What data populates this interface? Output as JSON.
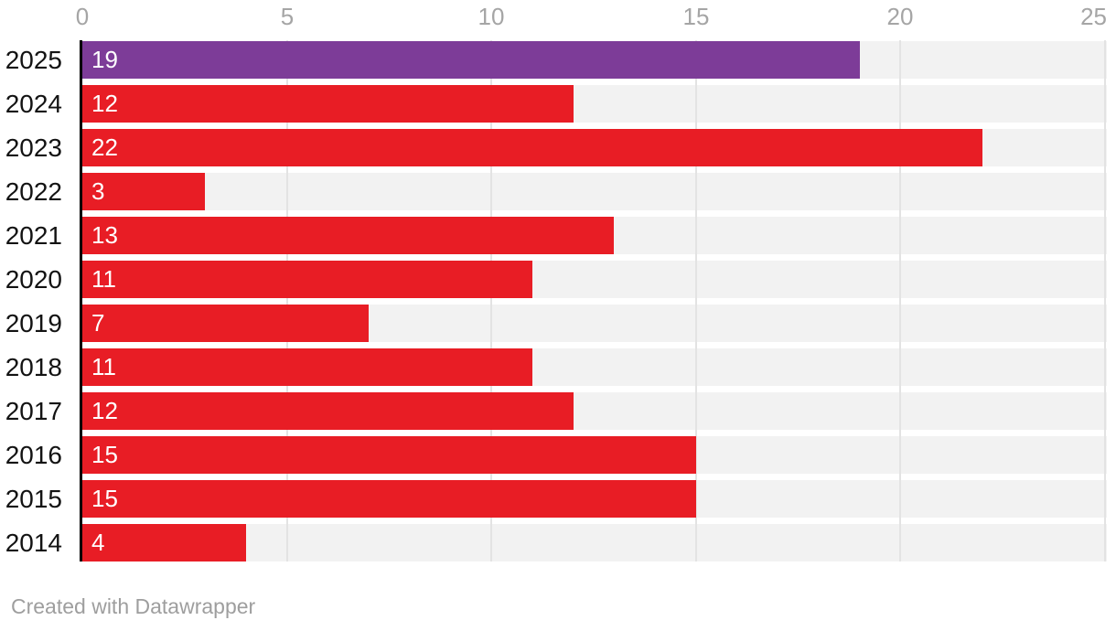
{
  "chart_data": {
    "type": "bar",
    "orientation": "horizontal",
    "categories": [
      "2025",
      "2024",
      "2023",
      "2022",
      "2021",
      "2020",
      "2019",
      "2018",
      "2017",
      "2016",
      "2015",
      "2014"
    ],
    "values": [
      19,
      12,
      22,
      3,
      13,
      11,
      7,
      11,
      12,
      15,
      15,
      4
    ],
    "value_labels": [
      "19",
      "12",
      "22",
      "3",
      "13",
      "11",
      "7",
      "11",
      "12",
      "15",
      "15",
      "4"
    ],
    "bar_colors": [
      "#7d3c98",
      "#e81d25",
      "#e81d25",
      "#e81d25",
      "#e81d25",
      "#e81d25",
      "#e81d25",
      "#e81d25",
      "#e81d25",
      "#e81d25",
      "#e81d25",
      "#e81d25"
    ],
    "title": "",
    "xlabel": "",
    "ylabel": "",
    "xlim": [
      0,
      25
    ],
    "xticks": [
      0,
      5,
      10,
      15,
      20,
      25
    ],
    "xtick_labels": [
      "0",
      "5",
      "10",
      "15",
      "20",
      "25"
    ],
    "grid": true,
    "legend": false,
    "value_label_position": "inside-start",
    "colors": {
      "highlight_bar": "#7d3c98",
      "default_bar": "#e81d25",
      "track": "#f2f2f2",
      "gridline": "#e3e3e3",
      "axis_line": "#000000",
      "tick_label": "#a5a5a5",
      "category_label": "#131313",
      "value_label": "#ffffff",
      "background": "#ffffff"
    }
  },
  "footer": {
    "credit": "Created with Datawrapper"
  }
}
